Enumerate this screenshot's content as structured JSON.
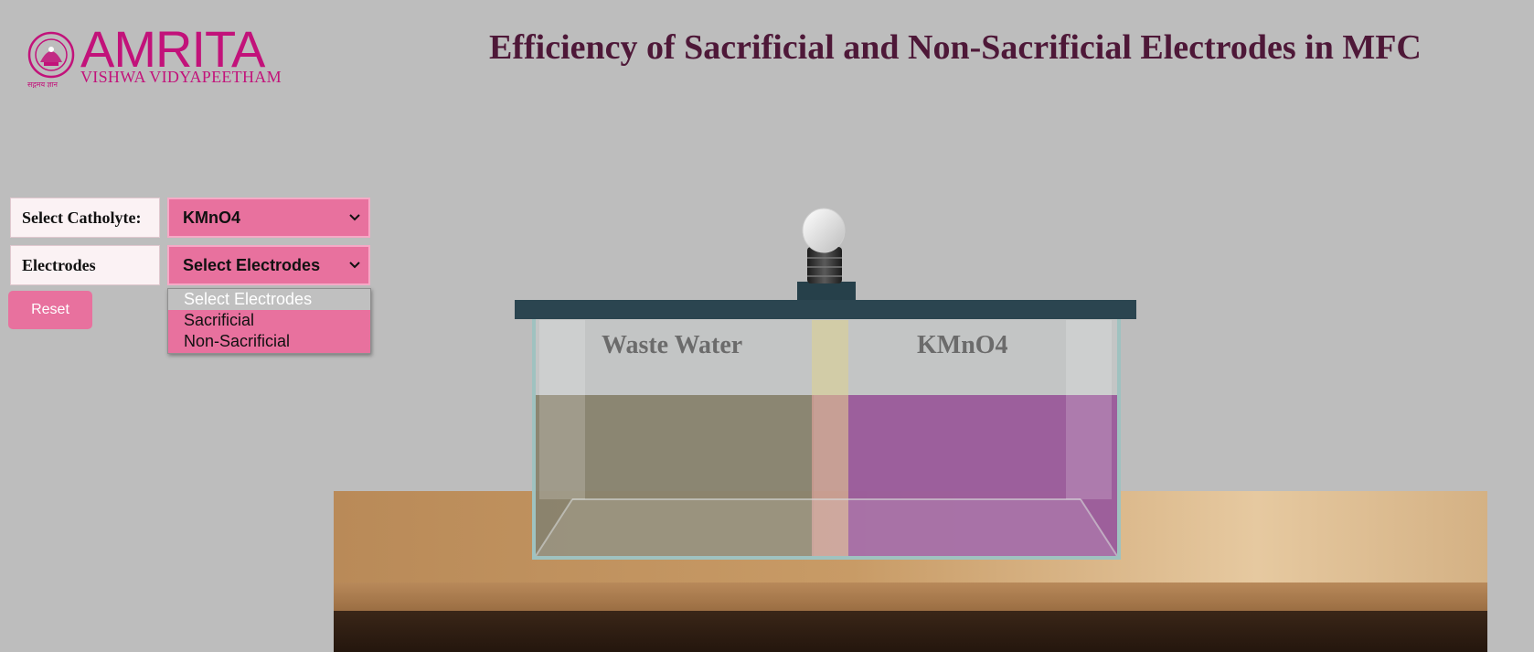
{
  "header": {
    "logo_name": "AMRITA",
    "logo_subtitle": "VISHWA VIDYAPEETHAM",
    "logo_tagline": "सद्गमय ज्ञान",
    "title": "Efficiency of Sacrificial and Non-Sacrificial Electrodes in MFC"
  },
  "controls": {
    "catholyte_label": "Select Catholyte:",
    "catholyte_value": "KMnO4",
    "electrodes_label": "Electrodes",
    "electrodes_value": "Select Electrodes",
    "reset_label": "Reset",
    "electrode_options": [
      "Select Electrodes",
      "Sacrificial",
      "Non-Sacrificial"
    ]
  },
  "tank": {
    "left_label": "Waste Water",
    "right_label": "KMnO4"
  },
  "colors": {
    "accent": "#e8719e",
    "title": "#4e1838",
    "logo": "#c2127a",
    "waste_water": "#857e68",
    "kmno4": "#9a5a9a"
  }
}
